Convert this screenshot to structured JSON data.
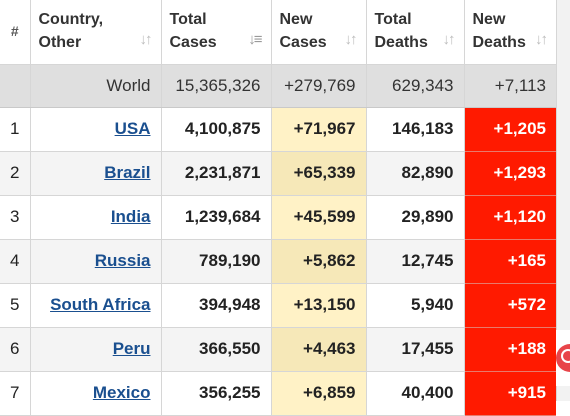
{
  "table": {
    "headers": [
      {
        "label": "#",
        "sortable": false
      },
      {
        "label": "Country,\nOther",
        "sortable": true
      },
      {
        "label": "Total\nCases",
        "sortable": true,
        "active": true
      },
      {
        "label": "New\nCases",
        "sortable": true
      },
      {
        "label": "Total\nDeaths",
        "sortable": true
      },
      {
        "label": "New\nDeaths",
        "sortable": true
      }
    ],
    "world": {
      "rank": "",
      "country": "World",
      "total_cases": "15,365,326",
      "new_cases": "+279,769",
      "total_deaths": "629,343",
      "new_deaths": "+7,113"
    },
    "rows": [
      {
        "rank": "1",
        "country": "USA",
        "total_cases": "4,100,875",
        "new_cases": "+71,967",
        "total_deaths": "146,183",
        "new_deaths": "+1,205"
      },
      {
        "rank": "2",
        "country": "Brazil",
        "total_cases": "2,231,871",
        "new_cases": "+65,339",
        "total_deaths": "82,890",
        "new_deaths": "+1,293"
      },
      {
        "rank": "3",
        "country": "India",
        "total_cases": "1,239,684",
        "new_cases": "+45,599",
        "total_deaths": "29,890",
        "new_deaths": "+1,120"
      },
      {
        "rank": "4",
        "country": "Russia",
        "total_cases": "789,190",
        "new_cases": "+5,862",
        "total_deaths": "12,745",
        "new_deaths": "+165"
      },
      {
        "rank": "5",
        "country": "South Africa",
        "total_cases": "394,948",
        "new_cases": "+13,150",
        "total_deaths": "5,940",
        "new_deaths": "+572"
      },
      {
        "rank": "6",
        "country": "Peru",
        "total_cases": "366,550",
        "new_cases": "+4,463",
        "total_deaths": "17,455",
        "new_deaths": "+188"
      },
      {
        "rank": "7",
        "country": "Mexico",
        "total_cases": "356,255",
        "new_cases": "+6,859",
        "total_deaths": "40,400",
        "new_deaths": "+915"
      }
    ]
  },
  "icons": {
    "sort": "sort-arrows-icon",
    "sort_active": "sort-descending-icon",
    "corner": "channel-logo-icon"
  },
  "colors": {
    "new_cases_bg": "#fff2c6",
    "new_deaths_bg": "#ff1a00",
    "world_row_bg": "#dfdfdf",
    "country_link": "#1a4f8f"
  }
}
